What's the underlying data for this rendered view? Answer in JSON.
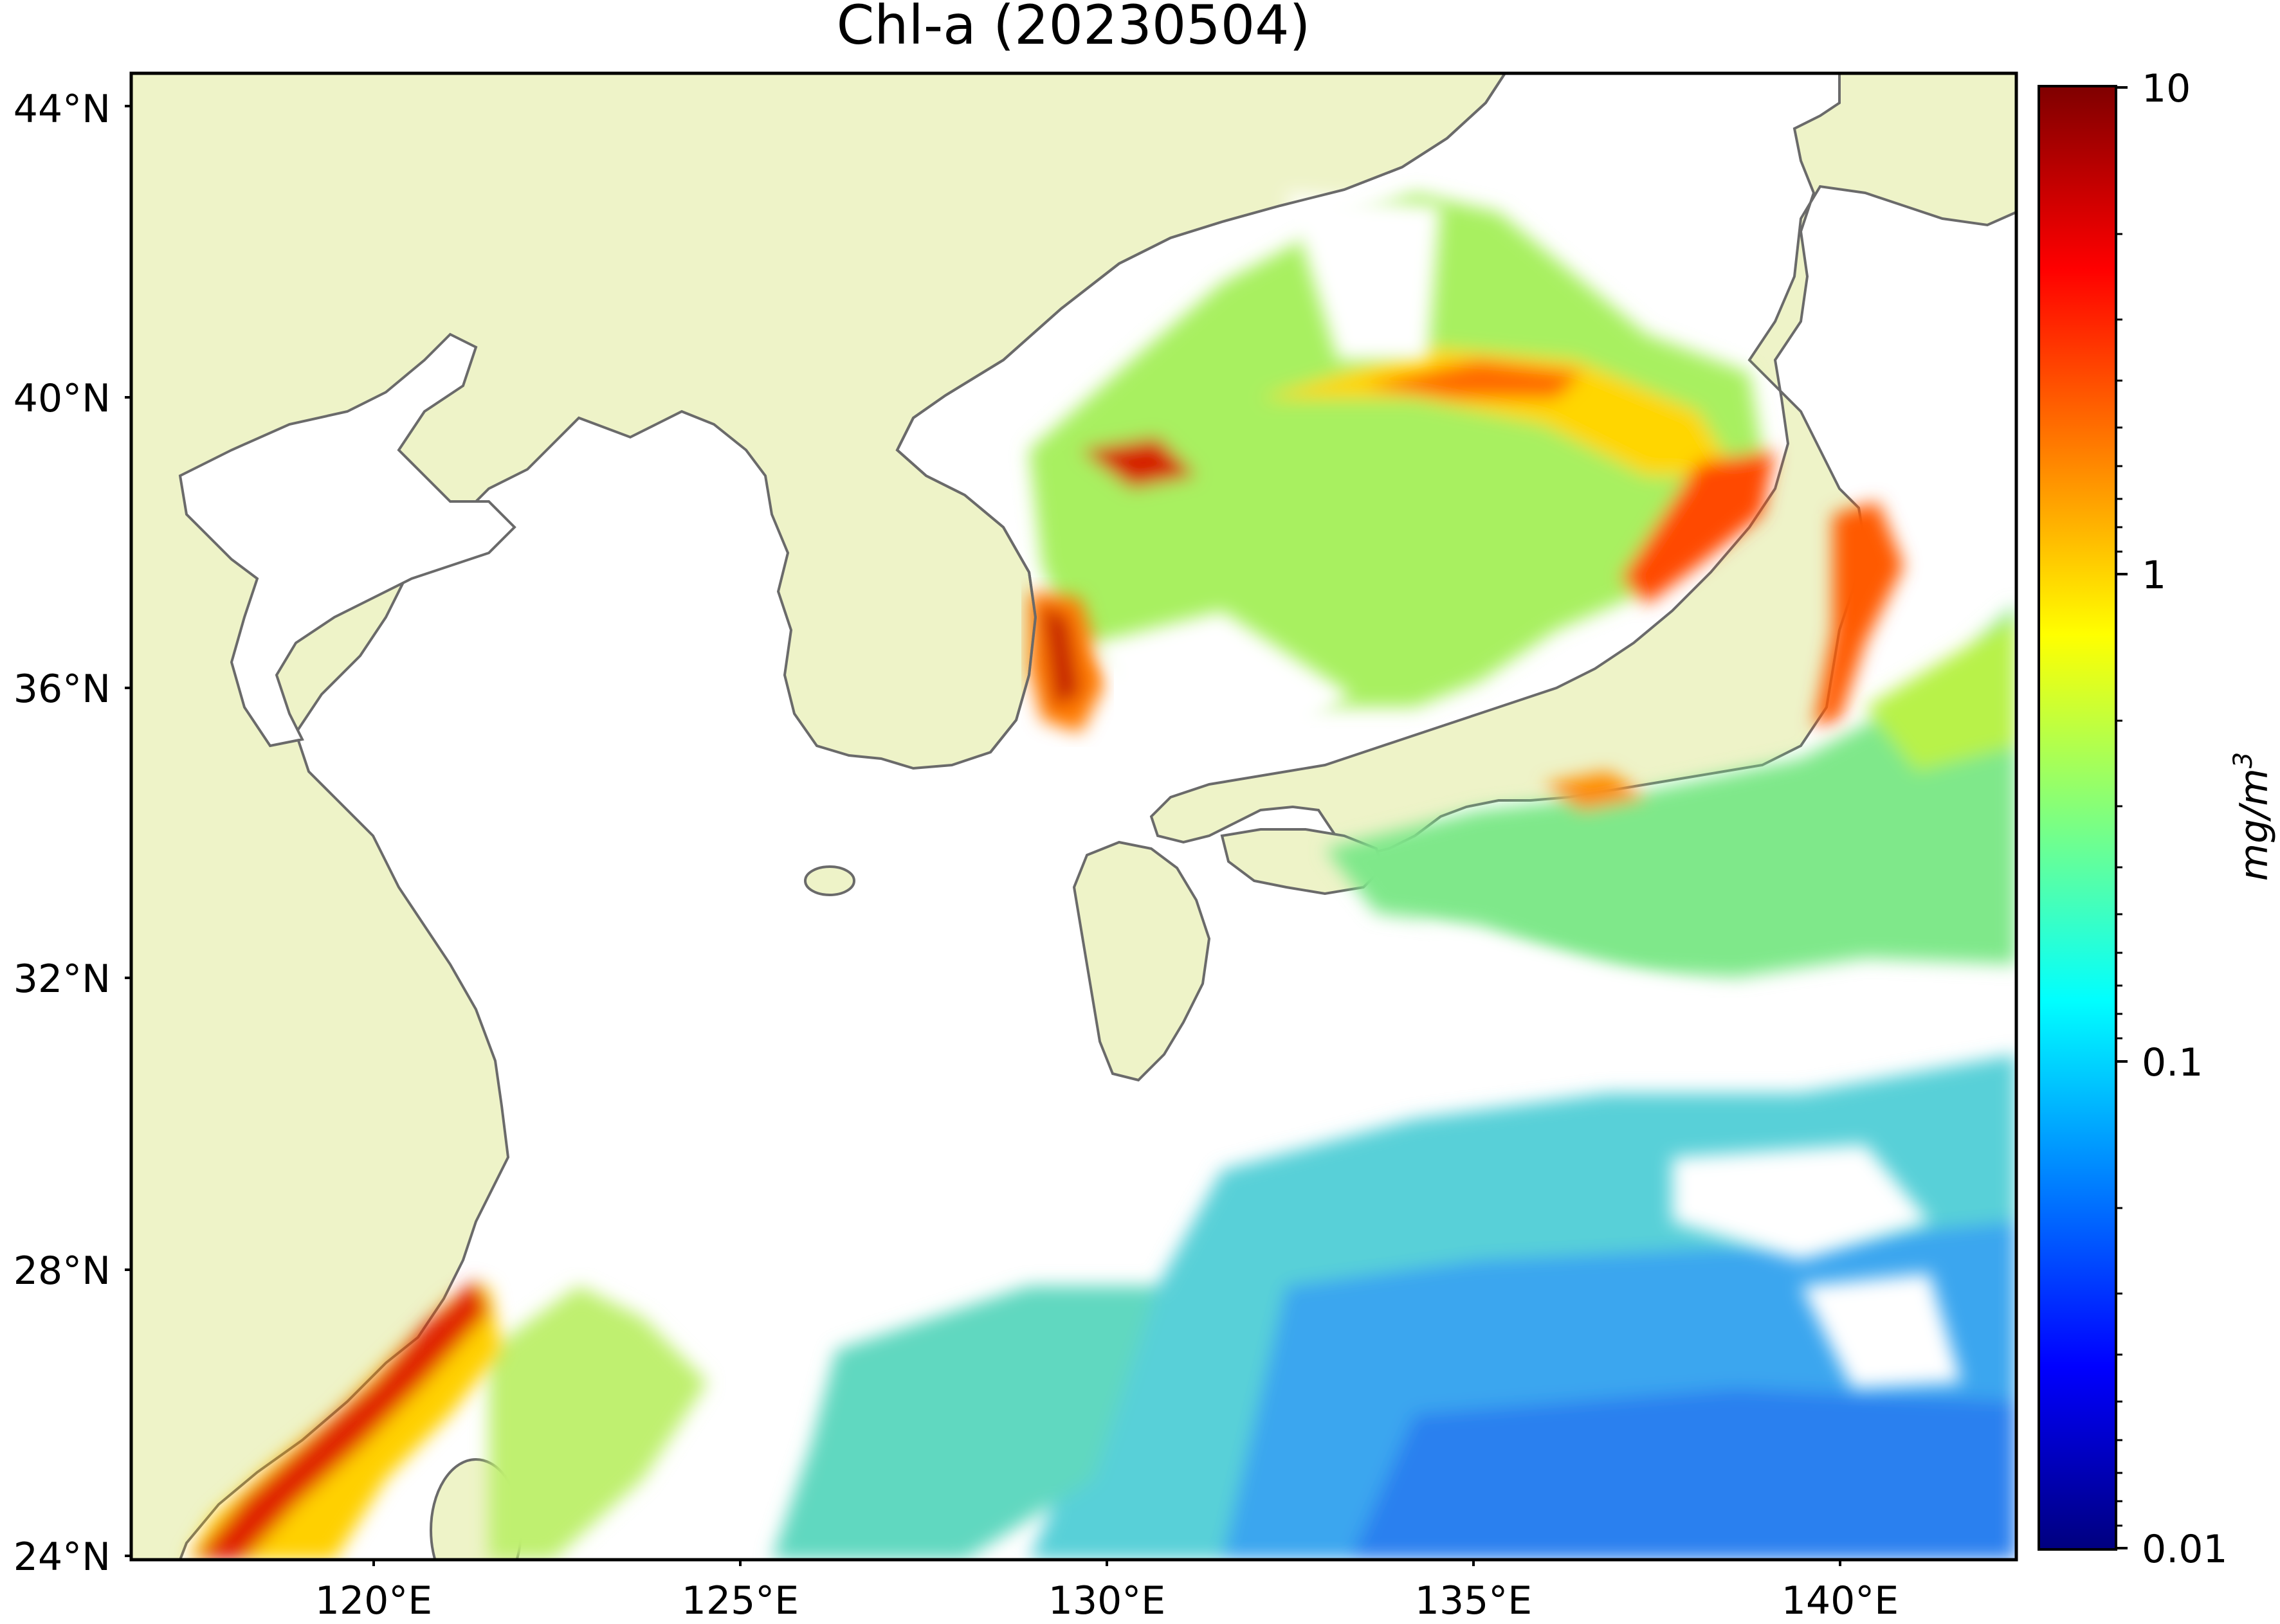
{
  "title": "Chl-a (20230504)",
  "lat_ticks": [
    "44°N",
    "40°N",
    "36°N",
    "32°N",
    "28°N",
    "24°N"
  ],
  "lon_ticks": [
    "120°E",
    "125°E",
    "130°E",
    "135°E",
    "140°E"
  ],
  "colorbar": {
    "label_base": "mg/m",
    "label_exp": "3",
    "ticks": [
      "10",
      "1",
      "0.1",
      "0.01"
    ],
    "scale": "log",
    "range": [
      0.01,
      10
    ],
    "colors": [
      "#00007f",
      "#0000ff",
      "#007fff",
      "#00ffff",
      "#7fff7f",
      "#ffff00",
      "#ff7f00",
      "#ff0000",
      "#7f0000"
    ]
  },
  "map_colors": {
    "land": "#eef3c8",
    "coast": "#6a6a6a",
    "frame": "#000000"
  }
}
